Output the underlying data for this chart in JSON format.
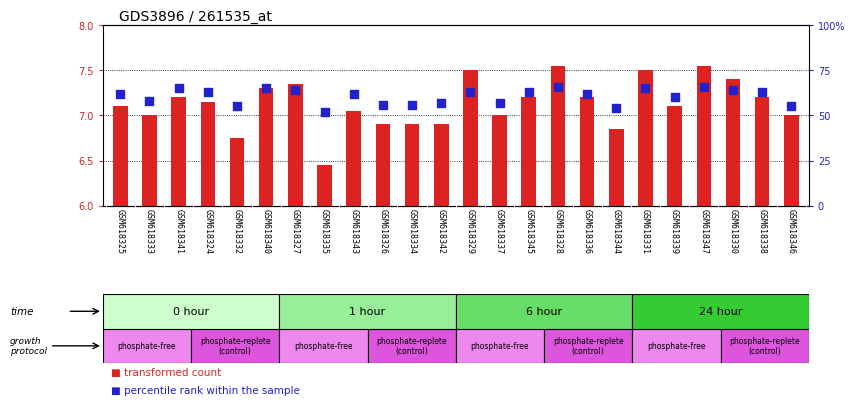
{
  "title": "GDS3896 / 261535_at",
  "samples": [
    "GSM618325",
    "GSM618333",
    "GSM618341",
    "GSM618324",
    "GSM618332",
    "GSM618340",
    "GSM618327",
    "GSM618335",
    "GSM618343",
    "GSM618326",
    "GSM618334",
    "GSM618342",
    "GSM618329",
    "GSM618337",
    "GSM618345",
    "GSM618328",
    "GSM618336",
    "GSM618344",
    "GSM618331",
    "GSM618339",
    "GSM618347",
    "GSM618330",
    "GSM618338",
    "GSM618346"
  ],
  "red_values": [
    7.1,
    7.0,
    7.2,
    7.15,
    6.75,
    7.3,
    7.35,
    6.45,
    7.05,
    6.9,
    6.9,
    6.9,
    7.5,
    7.0,
    7.2,
    7.55,
    7.2,
    6.85,
    7.5,
    7.1,
    7.55,
    7.4,
    7.2,
    7.0
  ],
  "blue_values": [
    62,
    58,
    65,
    63,
    55,
    65,
    64,
    52,
    62,
    56,
    56,
    57,
    63,
    57,
    63,
    66,
    62,
    54,
    65,
    60,
    66,
    64,
    63,
    55
  ],
  "ylim_left": [
    6,
    8
  ],
  "ylim_right": [
    0,
    100
  ],
  "yticks_left": [
    6,
    6.5,
    7,
    7.5,
    8
  ],
  "yticks_right": [
    0,
    25,
    50,
    75,
    100
  ],
  "ytick_labels_right": [
    "0",
    "25",
    "50",
    "75",
    "100%"
  ],
  "time_groups": [
    {
      "label": "0 hour",
      "start": 0,
      "end": 6,
      "color": "#ccffcc"
    },
    {
      "label": "1 hour",
      "start": 6,
      "end": 12,
      "color": "#99ee99"
    },
    {
      "label": "6 hour",
      "start": 12,
      "end": 18,
      "color": "#66dd66"
    },
    {
      "label": "24 hour",
      "start": 18,
      "end": 24,
      "color": "#33cc33"
    }
  ],
  "protocol_groups": [
    {
      "label": "phosphate-free",
      "start": 0,
      "end": 3,
      "color": "#ee88ee"
    },
    {
      "label": "phosphate-replete\n(control)",
      "start": 3,
      "end": 6,
      "color": "#dd55dd"
    },
    {
      "label": "phosphate-free",
      "start": 6,
      "end": 9,
      "color": "#ee88ee"
    },
    {
      "label": "phosphate-replete\n(control)",
      "start": 9,
      "end": 12,
      "color": "#dd55dd"
    },
    {
      "label": "phosphate-free",
      "start": 12,
      "end": 15,
      "color": "#ee88ee"
    },
    {
      "label": "phosphate-replete\n(control)",
      "start": 15,
      "end": 18,
      "color": "#dd55dd"
    },
    {
      "label": "phosphate-free",
      "start": 18,
      "end": 21,
      "color": "#ee88ee"
    },
    {
      "label": "phosphate-replete\n(control)",
      "start": 21,
      "end": 24,
      "color": "#dd55dd"
    }
  ],
  "red_color": "#dd2222",
  "blue_color": "#2222cc",
  "bar_bottom": 6.0,
  "dot_size": 28,
  "tick_label_color_left": "#cc2222",
  "tick_label_color_right": "#2222cc",
  "bg_color": "#ffffff",
  "sample_bg_color": "#cccccc",
  "title_fontsize": 10,
  "axis_fontsize": 7,
  "sample_fontsize": 6.0,
  "time_fontsize": 8,
  "proto_fontsize": 5.5,
  "legend_fontsize": 7.5
}
